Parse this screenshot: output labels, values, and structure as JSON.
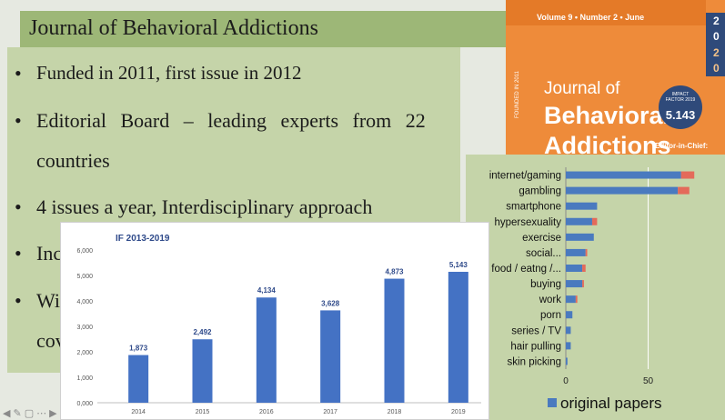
{
  "slide": {
    "title": "Journal of Behavioral Addictions",
    "bullets": [
      {
        "line1": "Funded in 2011, first issue in 2012"
      },
      {
        "line1": "Editorial Board – leading experts from 22",
        "line2": "countries"
      },
      {
        "line1": "4 issues a year, Interdisciplinary approach"
      },
      {
        "line1": "Inc"
      },
      {
        "line1": "Wi",
        "line2": "cov"
      }
    ],
    "bullet_char": "•"
  },
  "cover": {
    "volume": "Volume 9 • Number 2 • June",
    "year_digits": [
      "2",
      "0",
      "2",
      "0"
    ],
    "founded": "FOUNDED IN 2011",
    "title_line1": "Journal of",
    "title_line2": "Behavioral",
    "title_line3": "Addictions",
    "badge_label": "IMPACT FACTOR 2019",
    "badge_value": "5.143",
    "editor": "Editor-in-Chief:"
  },
  "colors": {
    "bar_blue": "#4a7abf",
    "bar_red": "#e46a5a",
    "if_bar": "#4472c4",
    "title_band": "#9db777",
    "content_bg": "#c5d4a9"
  },
  "nav": {
    "icons": [
      "back-arrow-icon",
      "pen-icon",
      "slides-icon",
      "more-icon",
      "forward-arrow-icon"
    ],
    "glyphs": [
      "◀",
      "✎",
      "▢",
      "⋯",
      "▶"
    ]
  },
  "chart_data": [
    {
      "type": "bar",
      "title": "IF 2013-2019",
      "categories": [
        "2014",
        "2015",
        "2016",
        "2017",
        "2018",
        "2019"
      ],
      "values": [
        1.873,
        2.492,
        4.134,
        3.628,
        4.873,
        5.143
      ],
      "value_labels": [
        "1,873",
        "2,492",
        "4,134",
        "3,628",
        "4,873",
        "5,143"
      ],
      "ylim": [
        0,
        6
      ],
      "yticks": [
        0,
        1,
        2,
        3,
        4,
        5,
        6
      ],
      "ytick_labels": [
        "0,000",
        "1,000",
        "2,000",
        "3,000",
        "4,000",
        "5,000",
        "6,000"
      ],
      "xlabel": "",
      "ylabel": "",
      "grid": false
    },
    {
      "type": "bar",
      "orientation": "horizontal",
      "stacked": true,
      "categories": [
        "internet/gaming",
        "gambling",
        "smartphone",
        "hypersexuality",
        "exercise",
        "social...",
        "food / eatng /...",
        "buying",
        "work",
        "porn",
        "series / TV",
        "hair pulling",
        "skin picking"
      ],
      "series": [
        {
          "name": "original papers",
          "values": [
            70,
            68,
            19,
            16,
            17,
            12,
            10,
            10,
            6,
            4,
            3,
            3,
            1
          ]
        },
        {
          "name": "",
          "values": [
            8,
            7,
            0,
            3,
            0,
            1,
            2,
            1,
            1,
            0,
            0,
            0,
            0
          ]
        }
      ],
      "xticks": [
        0,
        50
      ],
      "xlim": [
        0,
        95
      ],
      "legend": "bottom",
      "grid": true
    }
  ]
}
